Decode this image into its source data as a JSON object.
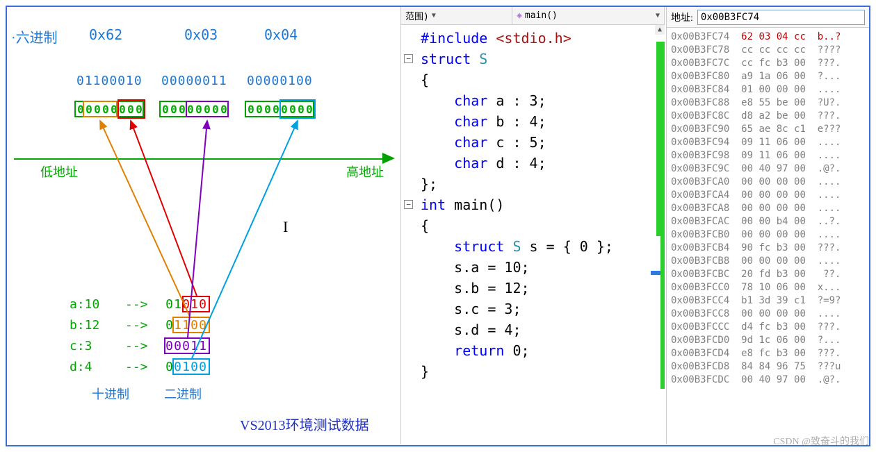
{
  "diagram": {
    "hex_label": "·六进制",
    "hex_values": [
      "0x62",
      "0x03",
      "0x04"
    ],
    "bin_top": [
      "01100010",
      "00000011",
      "00000100"
    ],
    "bits_row": {
      "byte1": "00000000",
      "byte2": "00000000",
      "byte3": "00000000"
    },
    "axis_low": "低地址",
    "axis_high": "高地址",
    "vars": [
      {
        "name": "a:10",
        "arrow": "-->",
        "bin": "01010"
      },
      {
        "name": "b:12",
        "arrow": "-->",
        "bin": "01100"
      },
      {
        "name": "c:3",
        "arrow": "-->",
        "bin": "00011"
      },
      {
        "name": "d:4",
        "arrow": "-->",
        "bin": "00100"
      }
    ],
    "col_dec": "十进制",
    "col_bin": "二进制",
    "caption": "VS2013环境测试数据",
    "colors": {
      "a": "#e08000",
      "b": "#e00000",
      "c": "#8000c0",
      "d": "#00a0e0",
      "green": "#00a000",
      "blue_text": "#1e78d6"
    }
  },
  "code_toolbar": {
    "scope": "范围)",
    "func": "main()"
  },
  "code": [
    {
      "indent": 0,
      "html": "<span class='pp'>#include</span> <span class='inc'>&lt;stdio.h&gt;</span>"
    },
    {
      "indent": 0,
      "html": "<span class='kw'>struct</span> <span class='type'>S</span>",
      "fold": true
    },
    {
      "indent": 0,
      "html": "{"
    },
    {
      "indent": 1,
      "html": "<span class='kw'>char</span> a : 3;"
    },
    {
      "indent": 1,
      "html": "<span class='kw'>char</span> b : 4;"
    },
    {
      "indent": 1,
      "html": "<span class='kw'>char</span> c : 5;"
    },
    {
      "indent": 1,
      "html": "<span class='kw'>char</span> d : 4;"
    },
    {
      "indent": 0,
      "html": "};"
    },
    {
      "indent": 0,
      "html": "<span class='kw'>int</span> main()",
      "fold": true
    },
    {
      "indent": 0,
      "html": "{"
    },
    {
      "indent": 1,
      "html": "<span class='kw'>struct</span> <span class='type'>S</span> s = { 0 };"
    },
    {
      "indent": 1,
      "html": "s.a = 10;"
    },
    {
      "indent": 1,
      "html": "s.b = 12;"
    },
    {
      "indent": 1,
      "html": "s.c = 3;"
    },
    {
      "indent": 1,
      "html": "s.d = 4;"
    },
    {
      "indent": 1,
      "html": "<span class='kw'>return</span> 0;"
    },
    {
      "indent": 0,
      "html": "}"
    }
  ],
  "memory": {
    "addr_label": "地址:",
    "addr_value": "0x00B3FC74",
    "rows": [
      {
        "addr": "0x00B3FC74",
        "bytes": "62 03 04 cc",
        "ascii": "b..?",
        "hl": true
      },
      {
        "addr": "0x00B3FC78",
        "bytes": "cc cc cc cc",
        "ascii": "????"
      },
      {
        "addr": "0x00B3FC7C",
        "bytes": "cc fc b3 00",
        "ascii": "???."
      },
      {
        "addr": "0x00B3FC80",
        "bytes": "a9 1a 06 00",
        "ascii": "?..."
      },
      {
        "addr": "0x00B3FC84",
        "bytes": "01 00 00 00",
        "ascii": "...."
      },
      {
        "addr": "0x00B3FC88",
        "bytes": "e8 55 be 00",
        "ascii": "?U?."
      },
      {
        "addr": "0x00B3FC8C",
        "bytes": "d8 a2 be 00",
        "ascii": "???."
      },
      {
        "addr": "0x00B3FC90",
        "bytes": "65 ae 8c c1",
        "ascii": "e???"
      },
      {
        "addr": "0x00B3FC94",
        "bytes": "09 11 06 00",
        "ascii": "...."
      },
      {
        "addr": "0x00B3FC98",
        "bytes": "09 11 06 00",
        "ascii": "...."
      },
      {
        "addr": "0x00B3FC9C",
        "bytes": "00 40 97 00",
        "ascii": ".@?."
      },
      {
        "addr": "0x00B3FCA0",
        "bytes": "00 00 00 00",
        "ascii": "...."
      },
      {
        "addr": "0x00B3FCA4",
        "bytes": "00 00 00 00",
        "ascii": "...."
      },
      {
        "addr": "0x00B3FCA8",
        "bytes": "00 00 00 00",
        "ascii": "...."
      },
      {
        "addr": "0x00B3FCAC",
        "bytes": "00 00 b4 00",
        "ascii": "..?."
      },
      {
        "addr": "0x00B3FCB0",
        "bytes": "00 00 00 00",
        "ascii": "...."
      },
      {
        "addr": "0x00B3FCB4",
        "bytes": "90 fc b3 00",
        "ascii": "???."
      },
      {
        "addr": "0x00B3FCB8",
        "bytes": "00 00 00 00",
        "ascii": "...."
      },
      {
        "addr": "0x00B3FCBC",
        "bytes": "20 fd b3 00",
        "ascii": " ??."
      },
      {
        "addr": "0x00B3FCC0",
        "bytes": "78 10 06 00",
        "ascii": "x..."
      },
      {
        "addr": "0x00B3FCC4",
        "bytes": "b1 3d 39 c1",
        "ascii": "?=9?"
      },
      {
        "addr": "0x00B3FCC8",
        "bytes": "00 00 00 00",
        "ascii": "...."
      },
      {
        "addr": "0x00B3FCCC",
        "bytes": "d4 fc b3 00",
        "ascii": "???."
      },
      {
        "addr": "0x00B3FCD0",
        "bytes": "9d 1c 06 00",
        "ascii": "?..."
      },
      {
        "addr": "0x00B3FCD4",
        "bytes": "e8 fc b3 00",
        "ascii": "???."
      },
      {
        "addr": "0x00B3FCD8",
        "bytes": "84 84 96 75",
        "ascii": "???u"
      },
      {
        "addr": "0x00B3FCDC",
        "bytes": "00 40 97 00",
        "ascii": ".@?."
      }
    ]
  },
  "watermark": "CSDN @致奋斗的我们"
}
